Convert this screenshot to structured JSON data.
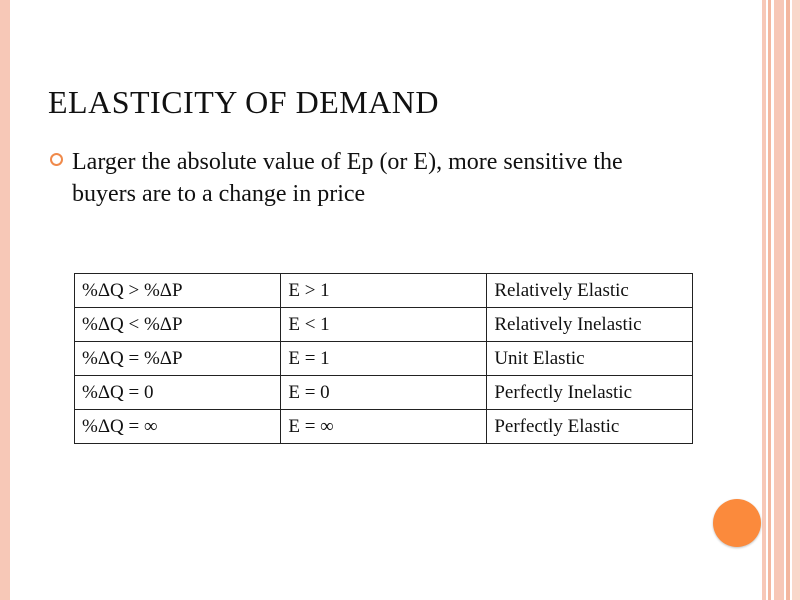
{
  "slide": {
    "title": "ELASTICITY OF DEMAND",
    "bullet": "Larger the absolute value of Ep (or E), more sensitive the buyers are to a change in price",
    "table": {
      "rows": [
        {
          "condition": "%ΔQ  > %ΔP",
          "value": " E > 1",
          "label": "Relatively Elastic"
        },
        {
          "condition": "%ΔQ  < %ΔP",
          "value": " E < 1",
          "label": "Relatively Inelastic"
        },
        {
          "condition": "%ΔQ  = %ΔP",
          "value": "E = 1",
          "label": "Unit Elastic"
        },
        {
          "condition": "%ΔQ  = 0",
          "value": "E = 0",
          "label": "Perfectly Inelastic"
        },
        {
          "condition": "%ΔQ = ∞",
          "value": "E = ∞",
          "label": "Perfectly Elastic"
        }
      ]
    }
  },
  "theme": {
    "accent": "#fb8a3c",
    "bullet_color": "#f08a4b",
    "border_color": "#f7c8b7"
  }
}
